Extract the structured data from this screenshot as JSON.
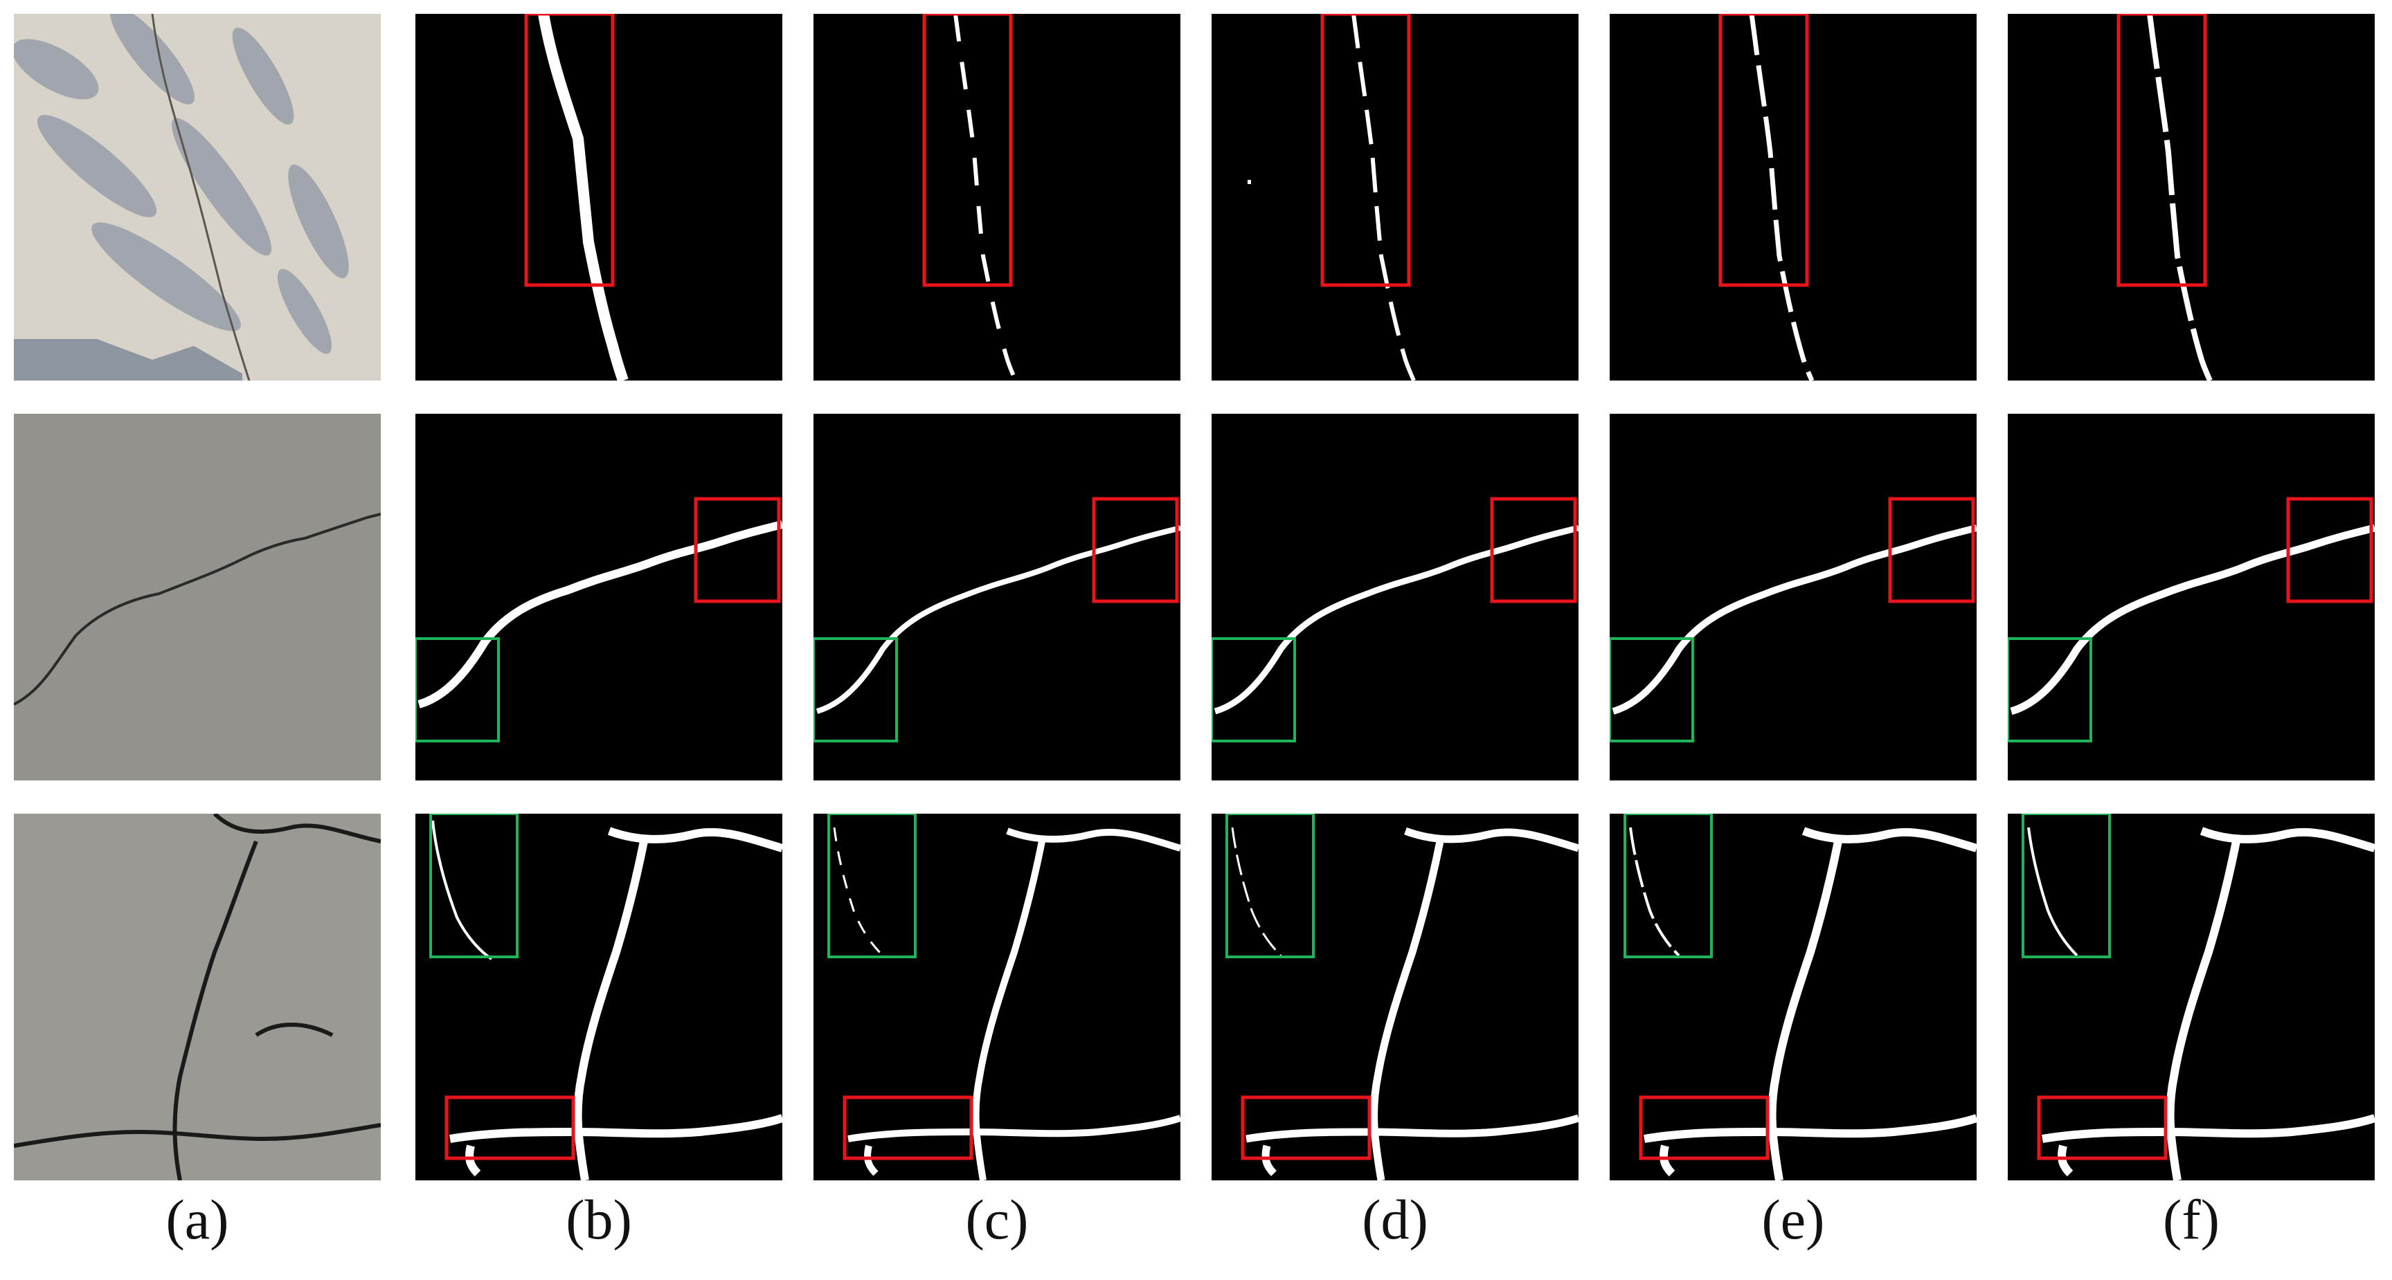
{
  "columns": [
    {
      "id": "a",
      "label": "(a)"
    },
    {
      "id": "b",
      "label": "(b)"
    },
    {
      "id": "c",
      "label": "(c)"
    },
    {
      "id": "d",
      "label": "(d)"
    },
    {
      "id": "e",
      "label": "(e)"
    },
    {
      "id": "f",
      "label": "(f)"
    }
  ],
  "rows": [
    {
      "id": "row1",
      "image_type": "pavement photo with tree shadows and thin crack"
    },
    {
      "id": "row2",
      "image_type": "asphalt photo with diagonal crack"
    },
    {
      "id": "row3",
      "image_type": "coarse aggregate pavement with network cracks"
    }
  ],
  "colors": {
    "highlight_red": "#e8141b",
    "highlight_green": "#1fb45a",
    "crack": "#ffffff",
    "background": "#000000"
  }
}
